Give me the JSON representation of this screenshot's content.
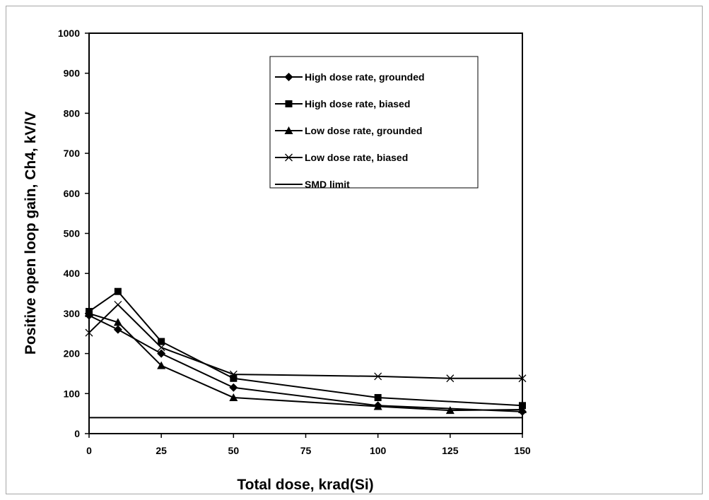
{
  "chart_data": {
    "type": "line",
    "title": "",
    "xlabel": "Total dose, krad(Si)",
    "ylabel": "Positive open loop gain, Ch4, kV/V",
    "xlim": [
      0,
      150
    ],
    "ylim": [
      0,
      1000
    ],
    "x_ticks": [
      "0",
      "25",
      "50",
      "75",
      "100",
      "125",
      "150"
    ],
    "y_ticks": [
      "0",
      "100",
      "200",
      "300",
      "400",
      "500",
      "600",
      "700",
      "800",
      "900",
      "1000"
    ],
    "legend_position": "top-right",
    "grid": false,
    "series": [
      {
        "name": "High dose rate, grounded",
        "marker": "diamond",
        "x": [
          0,
          10,
          25,
          50,
          100,
          150
        ],
        "y": [
          295,
          260,
          200,
          115,
          70,
          55
        ]
      },
      {
        "name": "High dose rate, biased",
        "marker": "square",
        "x": [
          0,
          10,
          25,
          50,
          100,
          150
        ],
        "y": [
          305,
          355,
          230,
          138,
          90,
          70
        ]
      },
      {
        "name": "Low dose rate, grounded",
        "marker": "triangle",
        "x": [
          0,
          10,
          25,
          50,
          100,
          125,
          150
        ],
        "y": [
          300,
          278,
          170,
          90,
          68,
          58,
          60
        ]
      },
      {
        "name": "Low dose rate, biased",
        "marker": "x",
        "x": [
          0,
          10,
          25,
          50,
          100,
          125,
          150
        ],
        "y": [
          252,
          322,
          215,
          148,
          143,
          138,
          138
        ]
      },
      {
        "name": "SMD limit",
        "marker": "none",
        "x": [
          0,
          150
        ],
        "y": [
          40,
          40
        ]
      }
    ]
  }
}
